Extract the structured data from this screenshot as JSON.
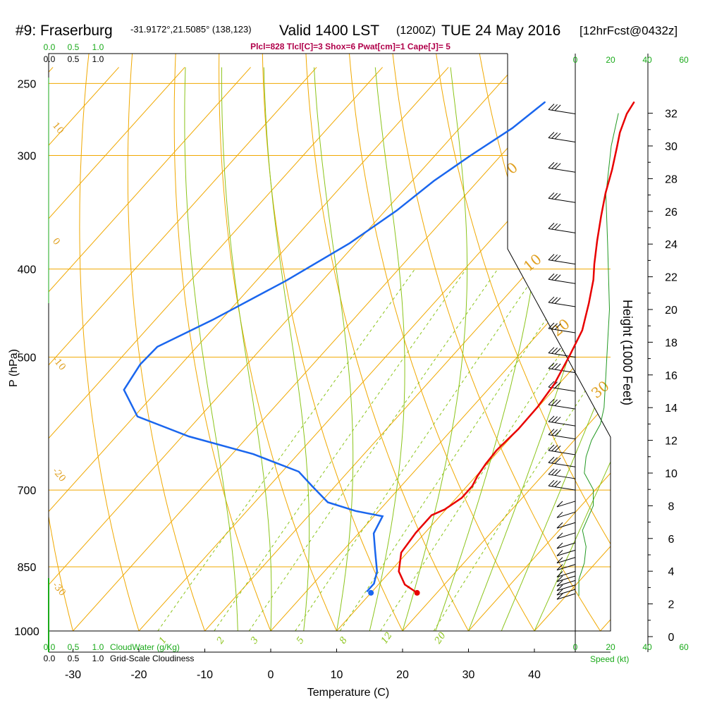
{
  "header": {
    "station": "#9: Fraserburg",
    "location": "-31.9172°,21.5085° (138,123)",
    "valid": "Valid 1400 LST",
    "zulu": "(1200Z)",
    "date": "TUE 24 May 2016",
    "forecast": "[12hrFcst@0432z]"
  },
  "indices": "Plcl=828 Tlcl[C]=3 Shox=6 Pwat[cm]=1 Cape[J]= 5",
  "colors": {
    "temperature": "#e80000",
    "dewpoint": "#1a66ee",
    "isotherm": "#f0a800",
    "dry_adiabat": "#f0a800",
    "moist_adiabat": "#8bc41a",
    "mixing_ratio": "#8bc41a",
    "cloud": "#1aaa1a",
    "wind_speed": "#229922"
  },
  "labels": {
    "cloudwater_scale": [
      "0.0",
      "0.5",
      "1.0"
    ],
    "cloudiness_scale": [
      "0.0",
      "0.5",
      "1.0"
    ],
    "cloudwater_caption": "CloudWater (g/Kg)",
    "cloudiness_caption": "Grid-Scale Cloudiness",
    "speed_ticks": [
      "0",
      "20",
      "40",
      "60"
    ],
    "speed_caption": "Speed (kt)",
    "height_caption": "Height (1000 Feet)",
    "pressure_caption": "P (hPa)",
    "temperature_caption": "Temperature (C)",
    "dry_adiabat_labels": [
      "10",
      "0",
      "-10",
      "-20",
      "-30"
    ],
    "right_theta_labels": [
      "0",
      "10",
      "20",
      "30"
    ],
    "mixing_ratio_labels": [
      "1",
      "2",
      "3",
      "5",
      "8",
      "12",
      "20"
    ]
  },
  "chart_data": {
    "type": "line",
    "chart_kind": "skew-T log-P sounding",
    "xlabel": "Temperature (C)",
    "ylabel": "P (hPa)",
    "xticks": [
      -30,
      -20,
      -10,
      0,
      10,
      20,
      30,
      40
    ],
    "xlim": [
      -35,
      45
    ],
    "yticks": [
      250,
      300,
      400,
      500,
      700,
      850,
      1000
    ],
    "ylim": [
      1000,
      250
    ],
    "y_scale": "log",
    "height_ticks_kft": [
      0,
      2,
      4,
      6,
      8,
      10,
      12,
      14,
      16,
      18,
      20,
      22,
      24,
      26,
      28,
      30,
      32
    ],
    "series": [
      {
        "name": "Temperature",
        "points": [
          {
            "p": 908,
            "t": 17.0
          },
          {
            "p": 889,
            "t": 14.0
          },
          {
            "p": 860,
            "t": 11.3
          },
          {
            "p": 820,
            "t": 9.1
          },
          {
            "p": 780,
            "t": 8.6
          },
          {
            "p": 746,
            "t": 8.6
          },
          {
            "p": 735,
            "t": 9.8
          },
          {
            "p": 714,
            "t": 10.8
          },
          {
            "p": 693,
            "t": 10.8
          },
          {
            "p": 675,
            "t": 10.2
          },
          {
            "p": 655,
            "t": 9.8
          },
          {
            "p": 633,
            "t": 9.6
          },
          {
            "p": 600,
            "t": 10.0
          },
          {
            "p": 567,
            "t": 9.9
          },
          {
            "p": 535,
            "t": 9.3
          },
          {
            "p": 499,
            "t": 7.8
          },
          {
            "p": 467,
            "t": 6.2
          },
          {
            "p": 436,
            "t": 3.5
          },
          {
            "p": 411,
            "t": 1.0
          },
          {
            "p": 395,
            "t": -1.0
          },
          {
            "p": 372,
            "t": -3.8
          },
          {
            "p": 350,
            "t": -6.5
          },
          {
            "p": 330,
            "t": -9.0
          },
          {
            "p": 311,
            "t": -11.2
          },
          {
            "p": 294,
            "t": -13.5
          },
          {
            "p": 283,
            "t": -15.1
          },
          {
            "p": 270,
            "t": -16.6
          },
          {
            "p": 262,
            "t": -17.1
          }
        ]
      },
      {
        "name": "Dewpoint",
        "points": [
          {
            "p": 905,
            "t": 9.2
          },
          {
            "p": 887,
            "t": 9.2
          },
          {
            "p": 860,
            "t": 8.0
          },
          {
            "p": 815,
            "t": 4.8
          },
          {
            "p": 781,
            "t": 2.3
          },
          {
            "p": 748,
            "t": 1.3
          },
          {
            "p": 738,
            "t": -3.5
          },
          {
            "p": 722,
            "t": -8.9
          },
          {
            "p": 693,
            "t": -13.5
          },
          {
            "p": 668,
            "t": -17.5
          },
          {
            "p": 639,
            "t": -26.8
          },
          {
            "p": 611,
            "t": -39.0
          },
          {
            "p": 581,
            "t": -49.5
          },
          {
            "p": 543,
            "t": -55.2
          },
          {
            "p": 509,
            "t": -56.2
          },
          {
            "p": 487,
            "t": -56.0
          },
          {
            "p": 455,
            "t": -51.3
          },
          {
            "p": 412,
            "t": -45.5
          },
          {
            "p": 375,
            "t": -41.0
          },
          {
            "p": 345,
            "t": -38.3
          },
          {
            "p": 320,
            "t": -36.7
          },
          {
            "p": 300,
            "t": -34.6
          },
          {
            "p": 280,
            "t": -32.0
          },
          {
            "p": 262,
            "t": -30.6
          }
        ]
      }
    ],
    "surface_temperature": {
      "p": 908,
      "t": 17.0
    },
    "surface_dewpoint": {
      "p": 908,
      "t": 10.0
    },
    "wind_speed_profile_kt": [
      {
        "p": 905,
        "h_kft": 2.5,
        "speed": 2
      },
      {
        "p": 870,
        "h_kft": 3.5,
        "speed": 2
      },
      {
        "p": 840,
        "h_kft": 4.5,
        "speed": 5
      },
      {
        "p": 810,
        "h_kft": 5.5,
        "speed": 6
      },
      {
        "p": 780,
        "h_kft": 6.5,
        "speed": 4
      },
      {
        "p": 750,
        "h_kft": 8.0,
        "speed": 10
      },
      {
        "p": 725,
        "h_kft": 9.0,
        "speed": 10
      },
      {
        "p": 700,
        "h_kft": 10.0,
        "speed": 5
      },
      {
        "p": 670,
        "h_kft": 11.0,
        "speed": 6
      },
      {
        "p": 650,
        "h_kft": 12.0,
        "speed": 9
      },
      {
        "p": 625,
        "h_kft": 13.0,
        "speed": 14
      },
      {
        "p": 600,
        "h_kft": 14.0,
        "speed": 16
      },
      {
        "p": 540,
        "h_kft": 16.0,
        "speed": 17
      },
      {
        "p": 500,
        "h_kft": 18.0,
        "speed": 18
      },
      {
        "p": 450,
        "h_kft": 20.0,
        "speed": 19
      },
      {
        "p": 400,
        "h_kft": 24.0,
        "speed": 18
      },
      {
        "p": 350,
        "h_kft": 27.0,
        "speed": 17
      },
      {
        "p": 300,
        "h_kft": 30.0,
        "speed": 20
      },
      {
        "p": 262,
        "h_kft": 32.0,
        "speed": 24
      }
    ],
    "wind_barb_levels_hpa": [
      270,
      290,
      313,
      338,
      365,
      395,
      415,
      440,
      470,
      500,
      520,
      545,
      570,
      595,
      615,
      640,
      660,
      680,
      700,
      720,
      740,
      760,
      780,
      800,
      815,
      830,
      845,
      860,
      870,
      880,
      890,
      900,
      910
    ]
  }
}
